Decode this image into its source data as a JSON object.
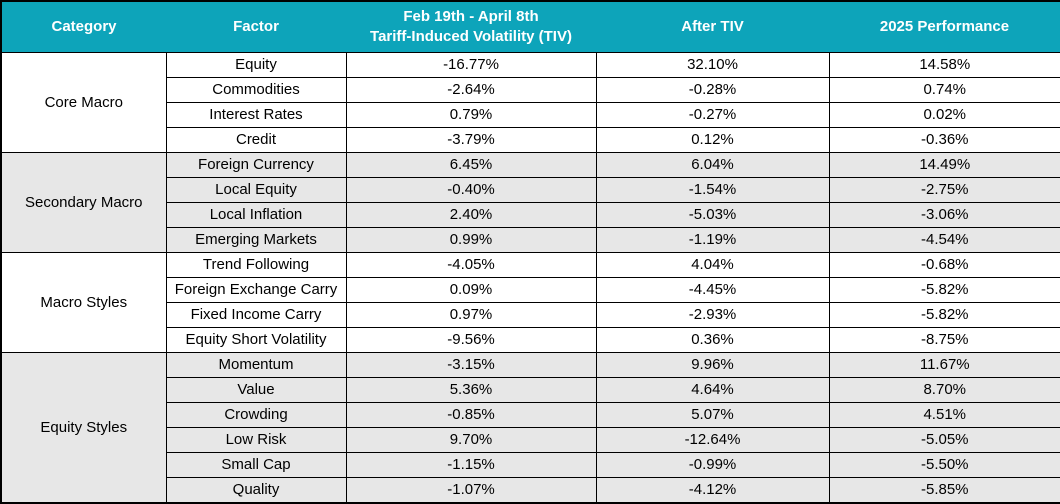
{
  "colors": {
    "header_bg": "#0da4ba",
    "header_text": "#ffffff",
    "shaded_row_bg": "#e7e7e7",
    "row_bg": "#ffffff",
    "border": "#000000"
  },
  "header": {
    "category": "Category",
    "factor": "Factor",
    "tiv_line1": "Feb 19th - April 8th",
    "tiv_line2": "Tariff-Induced Volatility (TIV)",
    "after_tiv": "After TIV",
    "performance": "2025 Performance"
  },
  "chart_data": {
    "type": "table",
    "title": "",
    "columns": [
      "Category",
      "Factor",
      "Feb 19th - April 8th Tariff-Induced Volatility (TIV)",
      "After TIV",
      "2025 Performance"
    ],
    "groups": [
      {
        "category": "Core Macro",
        "shaded": false,
        "rows": [
          [
            "Equity",
            "-16.77%",
            "32.10%",
            "14.58%"
          ],
          [
            "Commodities",
            "-2.64%",
            "-0.28%",
            "0.74%"
          ],
          [
            "Interest Rates",
            "0.79%",
            "-0.27%",
            "0.02%"
          ],
          [
            "Credit",
            "-3.79%",
            "0.12%",
            "-0.36%"
          ]
        ]
      },
      {
        "category": "Secondary Macro",
        "shaded": true,
        "rows": [
          [
            "Foreign Currency",
            "6.45%",
            "6.04%",
            "14.49%"
          ],
          [
            "Local Equity",
            "-0.40%",
            "-1.54%",
            "-2.75%"
          ],
          [
            "Local Inflation",
            "2.40%",
            "-5.03%",
            "-3.06%"
          ],
          [
            "Emerging Markets",
            "0.99%",
            "-1.19%",
            "-4.54%"
          ]
        ]
      },
      {
        "category": "Macro Styles",
        "shaded": false,
        "rows": [
          [
            "Trend Following",
            "-4.05%",
            "4.04%",
            "-0.68%"
          ],
          [
            "Foreign Exchange Carry",
            "0.09%",
            "-4.45%",
            "-5.82%"
          ],
          [
            "Fixed Income Carry",
            "0.97%",
            "-2.93%",
            "-5.82%"
          ],
          [
            "Equity Short Volatility",
            "-9.56%",
            "0.36%",
            "-8.75%"
          ]
        ]
      },
      {
        "category": "Equity Styles",
        "shaded": true,
        "rows": [
          [
            "Momentum",
            "-3.15%",
            "9.96%",
            "11.67%"
          ],
          [
            "Value",
            "5.36%",
            "4.64%",
            "8.70%"
          ],
          [
            "Crowding",
            "-0.85%",
            "5.07%",
            "4.51%"
          ],
          [
            "Low Risk",
            "9.70%",
            "-12.64%",
            "-5.05%"
          ],
          [
            "Small Cap",
            "-1.15%",
            "-0.99%",
            "-5.50%"
          ],
          [
            "Quality",
            "-1.07%",
            "-4.12%",
            "-5.85%"
          ]
        ]
      }
    ]
  }
}
